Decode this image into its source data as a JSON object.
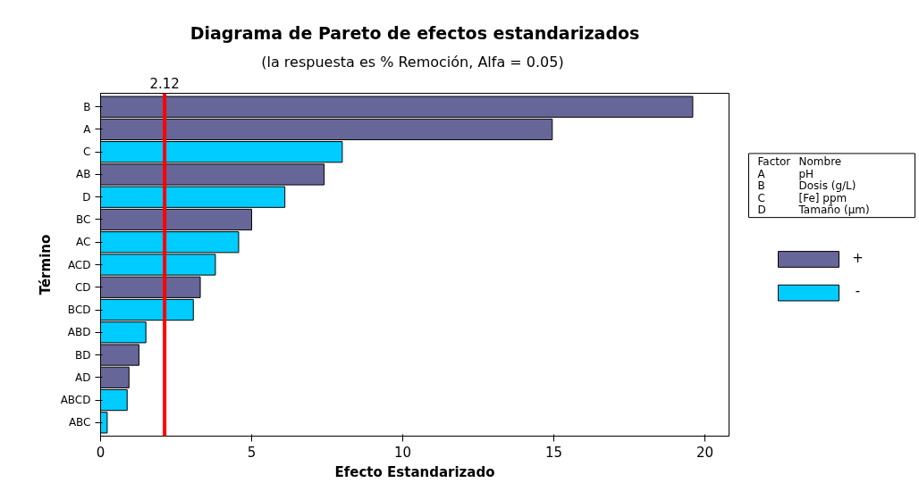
{
  "chart_data": {
    "type": "bar",
    "orientation": "horizontal",
    "title": "Diagrama de Pareto de efectos estandarizados",
    "subtitle": "(la respuesta es % Remoción, Alfa =  0.05)",
    "xlabel": "Efecto Estandarizado",
    "ylabel": "Término",
    "categories": [
      "B",
      "A",
      "C",
      "AB",
      "D",
      "BC",
      "AC",
      "ACD",
      "CD",
      "BCD",
      "ABD",
      "BD",
      "AD",
      "ABCD",
      "ABC"
    ],
    "series": [
      {
        "name": "+",
        "color": "#666699",
        "values": [
          19.6,
          14.95,
          null,
          7.4,
          null,
          5.0,
          null,
          null,
          3.3,
          null,
          null,
          1.27,
          0.94,
          null,
          null
        ]
      },
      {
        "name": "-",
        "color": "#00ccff",
        "values": [
          null,
          null,
          8.0,
          null,
          6.1,
          null,
          4.57,
          3.8,
          null,
          3.07,
          1.5,
          null,
          null,
          0.88,
          0.22
        ]
      }
    ],
    "xlim": [
      0,
      20.8
    ],
    "xticks": [
      0,
      5,
      10,
      15,
      20
    ],
    "ref_lines": [
      {
        "axis": "x",
        "value": 2.12,
        "label": "2.12",
        "color": "#ff0000"
      }
    ],
    "annotations": [
      "Factor Nombre",
      "A pH",
      "B Dosis (g/L)",
      "C [Fe] ppm",
      "D Tamaño (µm)"
    ],
    "grid": false,
    "legend": "right"
  }
}
